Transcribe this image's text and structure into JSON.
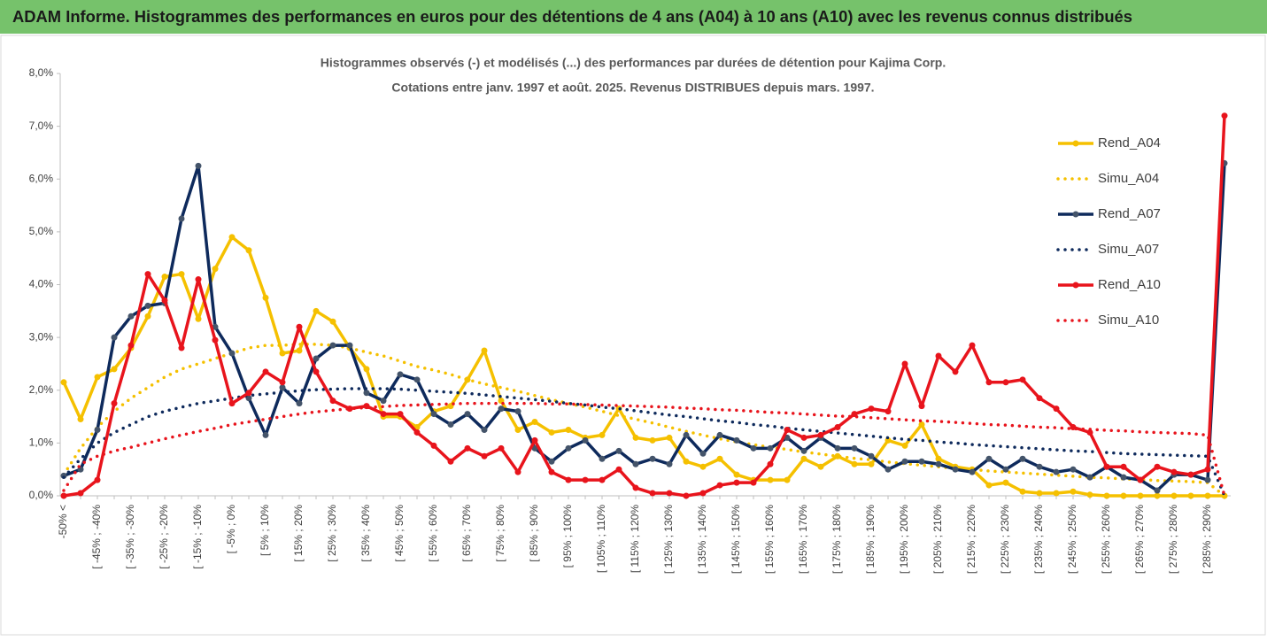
{
  "header": "ADAM Informe. Histogrammes des performances en euros pour des détentions de 4 ans (A04) à 10 ans (A10) avec les revenus connus distribués",
  "chart_data": {
    "type": "line",
    "title": "Histogrammes observés (-) et modélisés (...) des performances par durées de détention pour Kajima Corp.",
    "subtitle": "Cotations entre janv. 1997 et août. 2025. Revenus DISTRIBUES depuis mars. 1997.",
    "categories": [
      "-50% <",
      null,
      "[ -45% ; -40%",
      null,
      "[ -35% ; -30%",
      null,
      "[ -25% ; -20%",
      null,
      "[ -15% ; -10%",
      null,
      "[ -5% ; 0%",
      null,
      "[ 5% ; 10%",
      null,
      "[ 15% ; 20%",
      null,
      "[ 25% ; 30%",
      null,
      "[ 35% ; 40%",
      null,
      "[ 45% ; 50%",
      null,
      "[ 55% ; 60%",
      null,
      "[ 65% ; 70%",
      null,
      "[ 75% ; 80%",
      null,
      "[ 85% ; 90%",
      null,
      "[ 95% ; 100%",
      null,
      "[ 105% ; 110%",
      null,
      "[ 115% ; 120%",
      null,
      "[ 125% ; 130%",
      null,
      "[ 135% ; 140%",
      null,
      "[ 145% ; 150%",
      null,
      "[ 155% ; 160%",
      null,
      "[ 165% ; 170%",
      null,
      "[ 175% ; 180%",
      null,
      "[ 185% ; 190%",
      null,
      "[ 195% ; 200%",
      null,
      "[ 205% ; 210%",
      null,
      "[ 215% ; 220%",
      null,
      "[ 225% ; 230%",
      null,
      "[ 235% ; 240%",
      null,
      "[ 245% ; 250%",
      null,
      "[ 255% ; 260%",
      null,
      "[ 265% ; 270%",
      null,
      "[ 275% ; 280%",
      null,
      "[ 285% ; 290%",
      null
    ],
    "ylim": [
      0,
      8
    ],
    "yticks": [
      {
        "value": 0,
        "label": "0,0%"
      },
      {
        "value": 1,
        "label": "1,0%"
      },
      {
        "value": 2,
        "label": "2,0%"
      },
      {
        "value": 3,
        "label": "3,0%"
      },
      {
        "value": 4,
        "label": "4,0%"
      },
      {
        "value": 5,
        "label": "5,0%"
      },
      {
        "value": 6,
        "label": "6,0%"
      },
      {
        "value": 7,
        "label": "7,0%"
      },
      {
        "value": 8,
        "label": "8,0%"
      }
    ],
    "grid": false,
    "series": [
      {
        "name": "Rend_A04",
        "color": "#f5c000",
        "style": "solid",
        "markers": true,
        "values": [
          2.15,
          1.45,
          2.25,
          2.4,
          2.8,
          3.4,
          4.15,
          4.2,
          3.35,
          4.3,
          4.9,
          4.65,
          3.75,
          2.7,
          2.75,
          3.5,
          3.3,
          2.8,
          2.4,
          1.5,
          1.5,
          1.3,
          1.6,
          1.7,
          2.2,
          2.75,
          1.8,
          1.25,
          1.4,
          1.2,
          1.25,
          1.1,
          1.15,
          1.65,
          1.1,
          1.05,
          1.1,
          0.65,
          0.55,
          0.7,
          0.4,
          0.3,
          0.3,
          0.3,
          0.7,
          0.55,
          0.75,
          0.6,
          0.6,
          1.05,
          0.95,
          1.35,
          0.7,
          0.55,
          0.5,
          0.2,
          0.25,
          0.08,
          0.05,
          0.05,
          0.08,
          0.02,
          0,
          0,
          0,
          0,
          0,
          0,
          0,
          0
        ]
      },
      {
        "name": "Simu_A04",
        "color": "#f5c000",
        "style": "dotted",
        "markers": false,
        "values": [
          0.4,
          0.9,
          1.3,
          1.6,
          1.85,
          2.05,
          2.25,
          2.4,
          2.5,
          2.6,
          2.7,
          2.8,
          2.85,
          2.85,
          2.87,
          2.87,
          2.85,
          2.8,
          2.72,
          2.65,
          2.55,
          2.45,
          2.38,
          2.3,
          2.2,
          2.12,
          2.05,
          1.98,
          1.9,
          1.82,
          1.75,
          1.68,
          1.6,
          1.52,
          1.45,
          1.38,
          1.3,
          1.22,
          1.15,
          1.08,
          1.02,
          0.97,
          0.92,
          0.88,
          0.83,
          0.79,
          0.75,
          0.71,
          0.68,
          0.64,
          0.61,
          0.58,
          0.55,
          0.52,
          0.5,
          0.47,
          0.45,
          0.43,
          0.41,
          0.39,
          0.37,
          0.35,
          0.34,
          0.32,
          0.31,
          0.29,
          0.28,
          0.27,
          0.25,
          0
        ]
      },
      {
        "name": "Rend_A07",
        "color": "#0e2a5c",
        "style": "solid",
        "markers": true,
        "values": [
          0.38,
          0.5,
          1.25,
          3.0,
          3.4,
          3.6,
          3.65,
          5.25,
          6.25,
          3.2,
          2.7,
          1.85,
          1.15,
          2.05,
          1.75,
          2.6,
          2.85,
          2.85,
          1.95,
          1.8,
          2.3,
          2.2,
          1.55,
          1.35,
          1.55,
          1.25,
          1.65,
          1.6,
          0.9,
          0.65,
          0.9,
          1.05,
          0.7,
          0.85,
          0.6,
          0.7,
          0.6,
          1.15,
          0.8,
          1.15,
          1.05,
          0.9,
          0.9,
          1.1,
          0.85,
          1.1,
          0.9,
          0.9,
          0.75,
          0.5,
          0.65,
          0.65,
          0.6,
          0.5,
          0.45,
          0.7,
          0.5,
          0.7,
          0.55,
          0.45,
          0.5,
          0.35,
          0.55,
          0.35,
          0.3,
          0.1,
          0.4,
          0.4,
          0.3,
          6.3
        ]
      },
      {
        "name": "Simu_A07",
        "color": "#0e2a5c",
        "style": "dotted",
        "markers": false,
        "values": [
          0.35,
          0.7,
          1.0,
          1.2,
          1.35,
          1.5,
          1.6,
          1.68,
          1.75,
          1.8,
          1.85,
          1.9,
          1.93,
          1.96,
          1.99,
          2.01,
          2.02,
          2.03,
          2.03,
          2.03,
          2.02,
          2.0,
          1.98,
          1.96,
          1.94,
          1.91,
          1.88,
          1.85,
          1.82,
          1.79,
          1.75,
          1.72,
          1.68,
          1.65,
          1.61,
          1.57,
          1.53,
          1.5,
          1.46,
          1.42,
          1.39,
          1.35,
          1.32,
          1.28,
          1.25,
          1.22,
          1.19,
          1.16,
          1.13,
          1.1,
          1.07,
          1.05,
          1.02,
          1.0,
          0.97,
          0.95,
          0.93,
          0.91,
          0.89,
          0.87,
          0.85,
          0.84,
          0.82,
          0.8,
          0.79,
          0.78,
          0.77,
          0.76,
          0.75,
          0
        ]
      },
      {
        "name": "Rend_A10",
        "color": "#e8141c",
        "style": "solid",
        "markers": true,
        "values": [
          0,
          0.05,
          0.3,
          1.75,
          2.85,
          4.2,
          3.7,
          2.8,
          4.1,
          2.95,
          1.75,
          1.95,
          2.35,
          2.15,
          3.2,
          2.35,
          1.8,
          1.65,
          1.7,
          1.55,
          1.55,
          1.2,
          0.95,
          0.65,
          0.9,
          0.75,
          0.9,
          0.45,
          1.05,
          0.45,
          0.3,
          0.3,
          0.3,
          0.5,
          0.15,
          0.05,
          0.05,
          0,
          0.05,
          0.2,
          0.25,
          0.25,
          0.6,
          1.25,
          1.1,
          1.15,
          1.3,
          1.55,
          1.65,
          1.6,
          2.5,
          1.7,
          2.65,
          2.35,
          2.85,
          2.15,
          2.15,
          2.2,
          1.85,
          1.65,
          1.3,
          1.2,
          0.55,
          0.55,
          0.3,
          0.55,
          0.45,
          0.4,
          0.5,
          7.2
        ]
      },
      {
        "name": "Simu_A10",
        "color": "#e8141c",
        "style": "dotted",
        "markers": false,
        "values": [
          0.1,
          0.6,
          0.75,
          0.85,
          0.92,
          1.0,
          1.08,
          1.15,
          1.22,
          1.28,
          1.35,
          1.4,
          1.45,
          1.5,
          1.55,
          1.59,
          1.62,
          1.65,
          1.67,
          1.69,
          1.71,
          1.72,
          1.73,
          1.74,
          1.75,
          1.75,
          1.75,
          1.75,
          1.75,
          1.74,
          1.74,
          1.73,
          1.72,
          1.71,
          1.7,
          1.69,
          1.68,
          1.66,
          1.65,
          1.63,
          1.62,
          1.6,
          1.58,
          1.57,
          1.55,
          1.53,
          1.51,
          1.5,
          1.48,
          1.46,
          1.44,
          1.42,
          1.41,
          1.39,
          1.37,
          1.35,
          1.34,
          1.32,
          1.3,
          1.29,
          1.27,
          1.26,
          1.24,
          1.23,
          1.21,
          1.2,
          1.19,
          1.18,
          1.15,
          0
        ]
      }
    ]
  }
}
